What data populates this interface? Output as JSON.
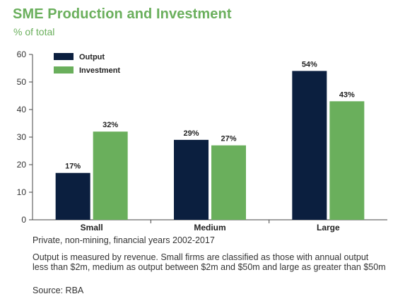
{
  "header": {
    "title": "SME Production and Investment",
    "subtitle": "% of total"
  },
  "footer": {
    "scope": "Private, non-mining, financial years 2002-2017",
    "note": "Output is measured by revenue. Small firms are classified as those with annual output less than $2m, medium as output between $2m and $50m and large as greater than $50m",
    "source": "Source: RBA"
  },
  "chart_data": {
    "type": "bar",
    "title": "SME Production and Investment",
    "ylabel": "% of total",
    "categories": [
      "Small",
      "Medium",
      "Large"
    ],
    "series": [
      {
        "name": "Output",
        "values": [
          17,
          29,
          54
        ],
        "labels": [
          "17%",
          "29%",
          "54%"
        ],
        "color": "#0b1f3f"
      },
      {
        "name": "Investment",
        "values": [
          32,
          27,
          43
        ],
        "labels": [
          "32%",
          "27%",
          "43%"
        ],
        "color": "#6aaf5c"
      }
    ],
    "ylim": [
      0,
      60
    ],
    "yticks": [
      0,
      10,
      20,
      30,
      40,
      50,
      60
    ],
    "grid": false,
    "legend": "top-left"
  }
}
